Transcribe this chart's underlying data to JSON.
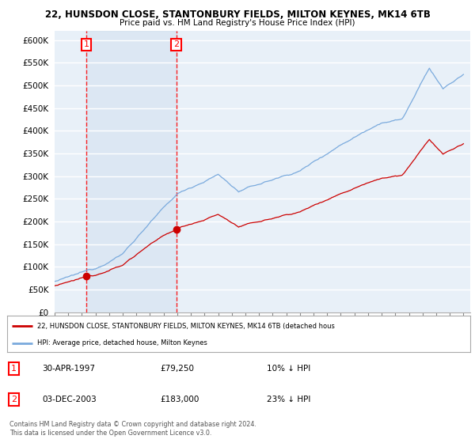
{
  "title1": "22, HUNSDON CLOSE, STANTONBURY FIELDS, MILTON KEYNES, MK14 6TB",
  "title2": "Price paid vs. HM Land Registry's House Price Index (HPI)",
  "ylim": [
    0,
    620000
  ],
  "yticks": [
    0,
    50000,
    100000,
    150000,
    200000,
    250000,
    300000,
    350000,
    400000,
    450000,
    500000,
    550000,
    600000
  ],
  "ytick_labels": [
    "£0",
    "£50K",
    "£100K",
    "£150K",
    "£200K",
    "£250K",
    "£300K",
    "£350K",
    "£400K",
    "£450K",
    "£500K",
    "£550K",
    "£600K"
  ],
  "xlim_start": 1995.0,
  "xlim_end": 2025.5,
  "sale1_x": 1997.33,
  "sale1_y": 79250,
  "sale2_x": 2003.92,
  "sale2_y": 183000,
  "sale1_date": "30-APR-1997",
  "sale1_price": "£79,250",
  "sale1_hpi": "10% ↓ HPI",
  "sale2_date": "03-DEC-2003",
  "sale2_price": "£183,000",
  "sale2_hpi": "23% ↓ HPI",
  "legend_line1": "22, HUNSDON CLOSE, STANTONBURY FIELDS, MILTON KEYNES, MK14 6TB (detached hous",
  "legend_line2": "HPI: Average price, detached house, Milton Keynes",
  "footer1": "Contains HM Land Registry data © Crown copyright and database right 2024.",
  "footer2": "This data is licensed under the Open Government Licence v3.0.",
  "bg_color": "#e8f0f8",
  "shade_color": "#c8d8ec",
  "grid_color": "#ffffff",
  "line_color_red": "#cc0000",
  "line_color_blue": "#7aaadd",
  "marker_color": "#cc0000",
  "label_box_color": "#cc0000"
}
